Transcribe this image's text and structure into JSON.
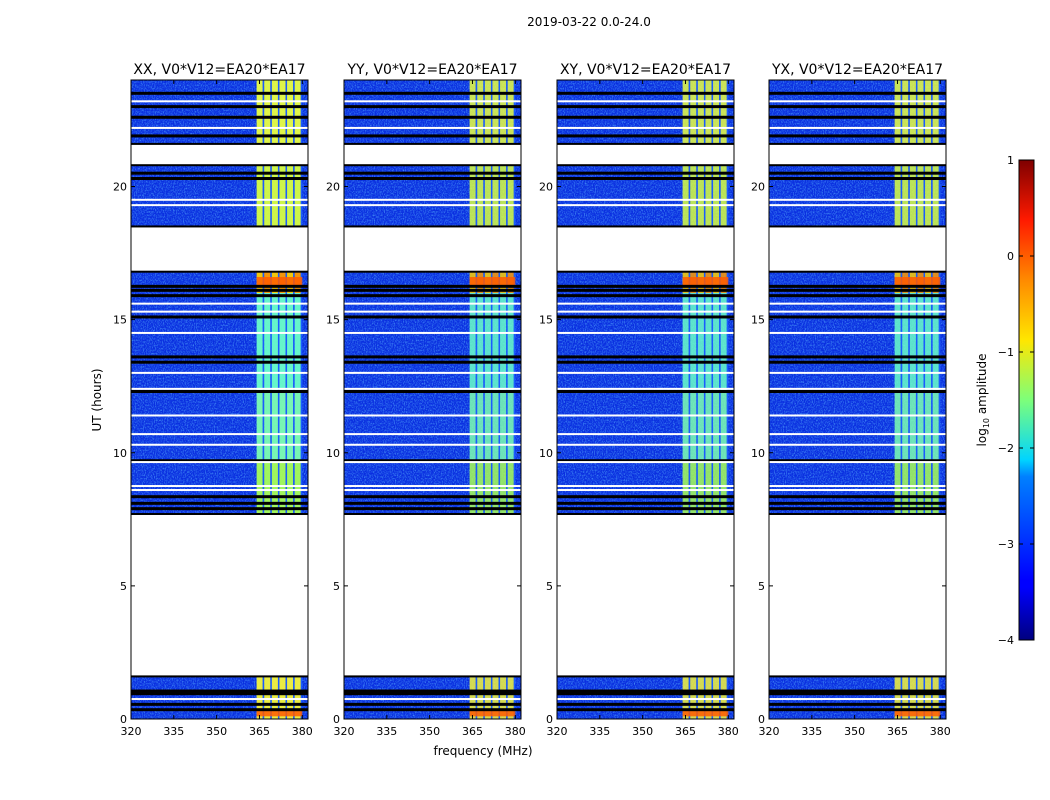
{
  "chart_data": {
    "type": "heatmap",
    "suptitle": "2019-03-22 0.0-24.0",
    "xlabel": "frequency (MHz)",
    "ylabel": "UT (hours)",
    "xlim": [
      320,
      382
    ],
    "ylim": [
      0,
      24
    ],
    "xticks": [
      320,
      335,
      350,
      365,
      380
    ],
    "yticks": [
      0,
      5,
      10,
      15,
      20
    ],
    "panels": [
      {
        "title": "XX, V0*V12=EA20*EA17",
        "pol": "XX"
      },
      {
        "title": "YY, V0*V12=EA20*EA17",
        "pol": "YY"
      },
      {
        "title": "XY, V0*V12=EA20*EA17",
        "pol": "XY"
      },
      {
        "title": "YX, V0*V12=EA20*EA17",
        "pol": "YX"
      }
    ],
    "data_gaps_hours": [
      [
        1.6,
        7.7
      ],
      [
        16.8,
        18.5
      ],
      [
        20.8,
        21.6
      ]
    ],
    "rfi_band_mhz": [
      364,
      380
    ],
    "colorbar": {
      "label": "log",
      "label_sub": "10",
      "label_rest": " amplitude",
      "min": -4,
      "max": 1,
      "ticks": [
        -4,
        -3,
        -2,
        -1,
        0,
        1
      ],
      "tick_labels": [
        "−4",
        "−3",
        "−2",
        "−1",
        "0",
        "1"
      ],
      "colormap": "jet"
    }
  }
}
